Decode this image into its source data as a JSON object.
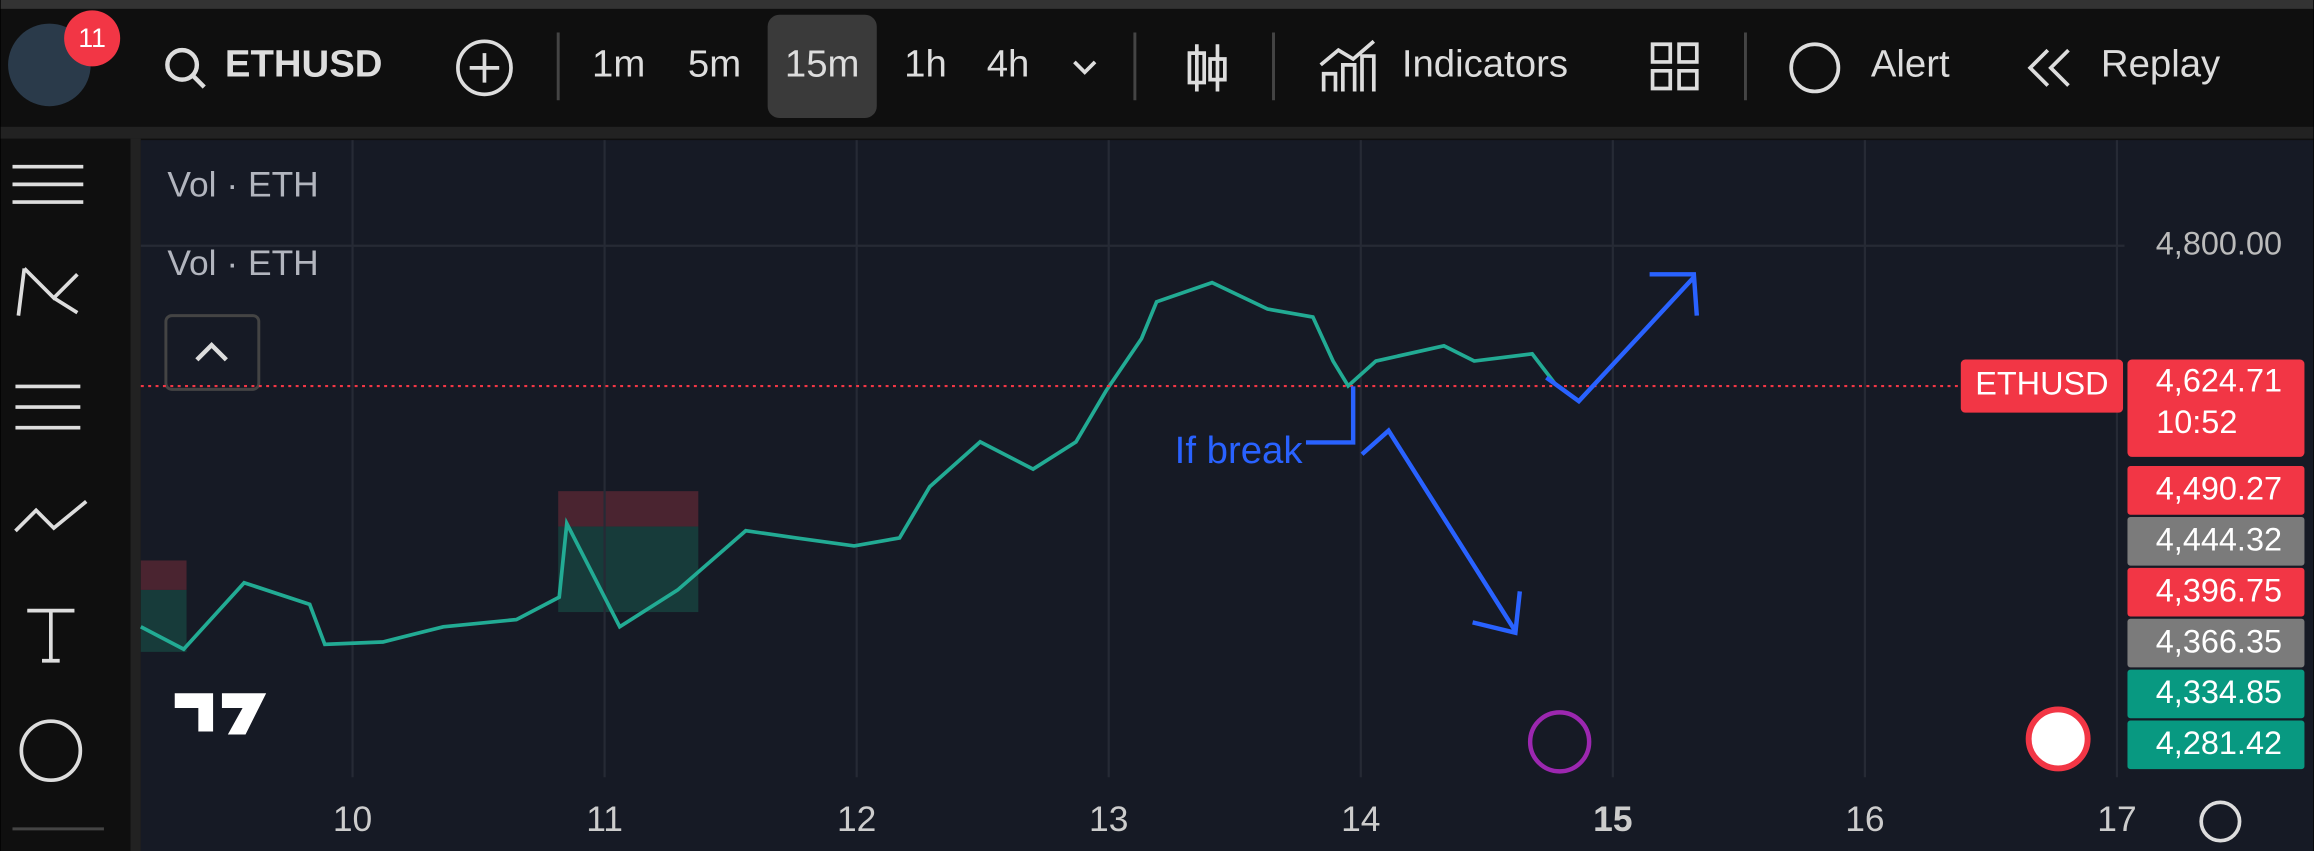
{
  "toolbar": {
    "badge": "11",
    "symbol": "ETHUSD",
    "intervals": [
      "1m",
      "5m",
      "15m",
      "1h",
      "4h"
    ],
    "active_interval": "15m",
    "indicators": "Indicators",
    "alert": "Alert",
    "replay": "Replay"
  },
  "legend": [
    "Vol · ETH",
    "Vol · ETH"
  ],
  "chart_data": {
    "type": "line",
    "color": "#22ab94",
    "x": [
      9.16,
      9.33,
      9.57,
      9.83,
      9.89,
      10.12,
      10.36,
      10.65,
      10.82,
      10.85,
      11.06,
      11.29,
      11.56,
      11.76,
      11.99,
      12.17,
      12.29,
      12.49,
      12.7,
      12.87,
      12.99,
      13.13,
      13.19,
      13.41,
      13.63,
      13.81,
      13.89,
      13.95,
      14.06,
      14.33,
      14.45,
      14.68,
      14.77
    ],
    "values": [
      4324,
      4296,
      4379,
      4352,
      4302,
      4305,
      4324,
      4333,
      4361,
      4453,
      4324,
      4370,
      4444,
      4435,
      4425,
      4435,
      4499,
      4555,
      4521,
      4555,
      4619,
      4684,
      4730,
      4754,
      4721,
      4711,
      4656,
      4625,
      4656,
      4675,
      4656,
      4665,
      4628
    ],
    "xlim": [
      9.16,
      17.03
    ],
    "xticks": [
      10,
      11,
      12,
      13,
      14,
      15,
      16,
      17
    ],
    "ylim": [
      4136,
      4932
    ],
    "yticks": [
      {
        "value": 4800,
        "label": "4,800.00"
      }
    ],
    "current": {
      "symbol": "ETHUSD",
      "value": 4624.71,
      "label": "4,624.71",
      "countdown": "10:52",
      "color": "#f23645"
    },
    "price_labels": [
      {
        "value": 4490.27,
        "label": "4,490.27",
        "color": "#f23645"
      },
      {
        "value": 4444.32,
        "label": "4,444.32",
        "color": "#7b7b7b"
      },
      {
        "value": 4396.75,
        "label": "4,396.75",
        "color": "#f23645"
      },
      {
        "value": 4366.35,
        "label": "4,366.35",
        "color": "#7b7b7b"
      },
      {
        "value": 4334.85,
        "label": "4,334.85",
        "color": "#089981"
      },
      {
        "value": 4281.42,
        "label": "4,281.42",
        "color": "#089981"
      }
    ],
    "annotation": "If break"
  }
}
